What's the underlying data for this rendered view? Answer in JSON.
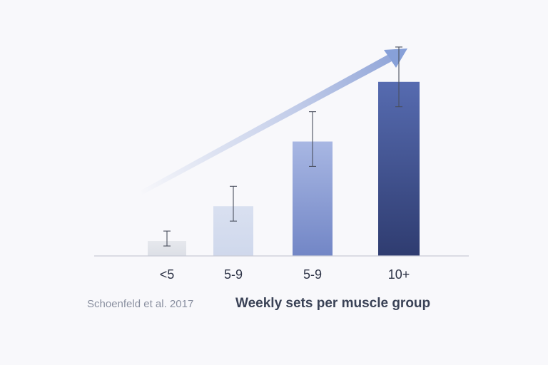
{
  "chart_data": {
    "type": "bar",
    "categories": [
      "<5",
      "5-9",
      "5-9",
      "10+"
    ],
    "values": [
      3,
      10,
      23,
      35
    ],
    "error_low": [
      2,
      7,
      18,
      30
    ],
    "error_high": [
      5,
      14,
      29,
      42
    ],
    "ylim": [
      0,
      44
    ],
    "xlabel": "Weekly sets per muscle group",
    "ylabel": "",
    "title": "",
    "grid": false,
    "annotation": "trend arrow pointing up-right",
    "bar_colors": [
      "#e2e5ea",
      "#d4dcee",
      "#8ea1d8",
      "#3d4d8e"
    ]
  },
  "footer": {
    "source": "Schoenfeld et al. 2017",
    "axis_title": "Weekly sets per muscle group"
  },
  "colors": {
    "background": "#f8f8fb",
    "axis": "#c9ccd6",
    "error_bar": "#4a4f5e",
    "arrow": "#8da3d6"
  }
}
